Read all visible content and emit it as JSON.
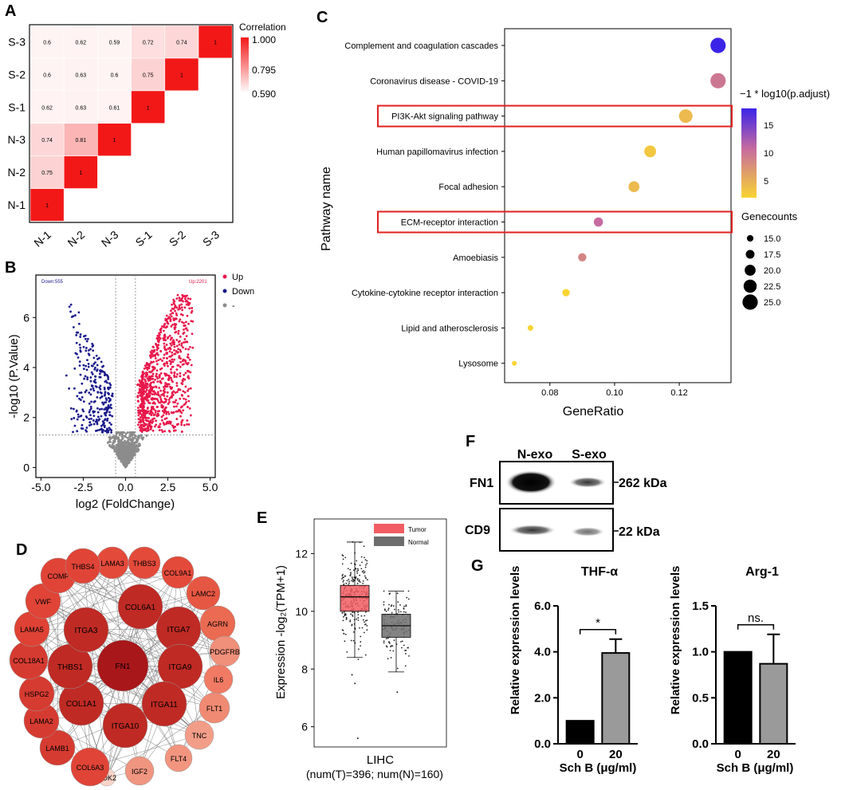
{
  "panel_labels": {
    "A": "A",
    "B": "B",
    "C": "C",
    "D": "D",
    "E": "E",
    "F": "F",
    "G": "G"
  },
  "colors": {
    "heat_hi": "#f21818",
    "heat_lo": "#ffffff",
    "up": "#e8174a",
    "down": "#1a1a8c",
    "ns": "#8c8c8c",
    "dot_hi": "#3b24e8",
    "dot_mid": "#c66aa0",
    "dot_lo": "#f9d432",
    "tumor": "#f15d62",
    "normal": "#6d6d6d",
    "box_border": "#e22020"
  },
  "chart_data": [
    {
      "panel": "A",
      "type": "heatmap",
      "rows": [
        "S-3",
        "S-2",
        "S-1",
        "N-3",
        "N-2",
        "N-1"
      ],
      "cols": [
        "N-1",
        "N-2",
        "N-3",
        "S-1",
        "S-2",
        "S-3"
      ],
      "cells": [
        {
          "r": "N-1",
          "c": "N-1",
          "v": 1,
          "label": "1"
        },
        {
          "r": "N-2",
          "c": "N-1",
          "v": 0.75,
          "label": "0.75"
        },
        {
          "r": "N-2",
          "c": "N-2",
          "v": 1,
          "label": "1"
        },
        {
          "r": "N-3",
          "c": "N-1",
          "v": 0.74,
          "label": "0.74"
        },
        {
          "r": "N-3",
          "c": "N-2",
          "v": 0.81,
          "label": "0.81"
        },
        {
          "r": "N-3",
          "c": "N-3",
          "v": 1,
          "label": "1"
        },
        {
          "r": "S-1",
          "c": "N-1",
          "v": 0.62,
          "label": "0.62"
        },
        {
          "r": "S-1",
          "c": "N-2",
          "v": 0.63,
          "label": "0.63"
        },
        {
          "r": "S-1",
          "c": "N-3",
          "v": 0.61,
          "label": "0.61"
        },
        {
          "r": "S-1",
          "c": "S-1",
          "v": 1,
          "label": "1"
        },
        {
          "r": "S-2",
          "c": "N-1",
          "v": 0.6,
          "label": "0.6"
        },
        {
          "r": "S-2",
          "c": "N-2",
          "v": 0.63,
          "label": "0.63"
        },
        {
          "r": "S-2",
          "c": "N-3",
          "v": 0.6,
          "label": "0.6"
        },
        {
          "r": "S-2",
          "c": "S-1",
          "v": 0.75,
          "label": "0.75"
        },
        {
          "r": "S-2",
          "c": "S-2",
          "v": 1,
          "label": "1"
        },
        {
          "r": "S-3",
          "c": "N-1",
          "v": 0.6,
          "label": "0.6"
        },
        {
          "r": "S-3",
          "c": "N-2",
          "v": 0.62,
          "label": "0.62"
        },
        {
          "r": "S-3",
          "c": "N-3",
          "v": 0.59,
          "label": "0.59"
        },
        {
          "r": "S-3",
          "c": "S-1",
          "v": 0.72,
          "label": "0.72"
        },
        {
          "r": "S-3",
          "c": "S-2",
          "v": 0.74,
          "label": "0.74"
        },
        {
          "r": "S-3",
          "c": "S-3",
          "v": 1,
          "label": "1"
        }
      ],
      "legend": {
        "title": "Correlation",
        "ticks": [
          "1.000",
          "0.795",
          "0.590"
        ],
        "range": [
          0.59,
          1.0
        ]
      }
    },
    {
      "panel": "B",
      "type": "scatter",
      "xlabel": "log2 (FoldChange)",
      "ylabel": "-log10 (P.Value)",
      "xlim": [
        -5.3,
        5.3
      ],
      "ylim": [
        -0.4,
        7.7
      ],
      "xticks": [
        "-5.0",
        "-2.5",
        "0.0",
        "2.5",
        "5.0"
      ],
      "xtick_values": [
        -5,
        -2.5,
        0,
        2.5,
        5
      ],
      "yticks": [
        "0",
        "2",
        "4",
        "6"
      ],
      "ytick_values": [
        0,
        2,
        4,
        6
      ],
      "fc_threshold": 0.585,
      "p_threshold": 1.3,
      "corner_down": "Down:555",
      "corner_up": "Up:2201",
      "legend": [
        {
          "name": "Up",
          "color": "#e8174a"
        },
        {
          "name": "Down",
          "color": "#1a1a8c"
        },
        {
          "name": "-",
          "color": "#8c8c8c"
        }
      ],
      "counts": {
        "Up": 2201,
        "Down": 555
      }
    },
    {
      "panel": "C",
      "type": "scatter",
      "xlabel": "GeneRatio",
      "ylabel": "Pathway name",
      "xlim": [
        0.066,
        0.136
      ],
      "xticks": [
        "0.08",
        "0.10",
        "0.12"
      ],
      "xtick_values": [
        0.08,
        0.1,
        0.12
      ],
      "pathways": [
        {
          "name": "Complement and coagulation cascades",
          "ratio": 0.132,
          "count": 25,
          "padj": 18
        },
        {
          "name": "Coronavirus disease - COVID-19",
          "ratio": 0.132,
          "count": 25,
          "padj": 9
        },
        {
          "name": "PI3K-Akt signaling pathway",
          "ratio": 0.122,
          "count": 23,
          "padj": 4
        },
        {
          "name": "Human papillomavirus infection",
          "ratio": 0.111,
          "count": 21,
          "padj": 3
        },
        {
          "name": "Focal adhesion",
          "ratio": 0.106,
          "count": 20,
          "padj": 4
        },
        {
          "name": "ECM-receptor interaction",
          "ratio": 0.095,
          "count": 18,
          "padj": 10
        },
        {
          "name": "Amoebiasis",
          "ratio": 0.09,
          "count": 17,
          "padj": 8
        },
        {
          "name": "Cytokine-cytokine receptor interaction",
          "ratio": 0.085,
          "count": 16,
          "padj": 2
        },
        {
          "name": "Lipid and atherosclerosis",
          "ratio": 0.074,
          "count": 14,
          "padj": 2
        },
        {
          "name": "Lysosome",
          "ratio": 0.069,
          "count": 13,
          "padj": 2
        }
      ],
      "highlighted": [
        "PI3K-Akt signaling pathway",
        "ECM-receptor interaction"
      ],
      "color_legend": {
        "title": "−1 * log10(p.adjust)",
        "ticks": [
          "15",
          "10",
          "5"
        ],
        "tick_values": [
          15,
          10,
          5
        ],
        "range": [
          2,
          18
        ]
      },
      "size_legend": {
        "title": "Genecounts",
        "items": [
          "15.0",
          "17.5",
          "20.0",
          "22.5",
          "25.0"
        ],
        "values": [
          15,
          17.5,
          20,
          22.5,
          25
        ]
      }
    },
    {
      "panel": "D",
      "type": "network",
      "hub": "FN1",
      "inner": [
        "COL6A1",
        "ITGA7",
        "ITGA9",
        "ITGA11",
        "ITGA10",
        "COL1A1",
        "THBS1",
        "ITGA3"
      ],
      "outer": [
        "LAMA3",
        "THBS3",
        "COL9A1",
        "LAMC2",
        "AGRN",
        "PDGFRB",
        "IL6",
        "FLT1",
        "TNC",
        "FLT4",
        "IGF2",
        "CDK2",
        "COL6A3",
        "LAMB1",
        "LAMA2",
        "HSPG2",
        "COL18A1",
        "LAMA5",
        "VWF",
        "COMP",
        "THBS4"
      ]
    },
    {
      "panel": "E",
      "type": "box",
      "categories": [
        "Tumor",
        "Normal"
      ],
      "ylabel": "Expression -log₂(TPM+1)",
      "ylim": [
        5.3,
        13.2
      ],
      "yticks": [
        "6",
        "8",
        "10",
        "12"
      ],
      "ytick_values": [
        6,
        8,
        10,
        12
      ],
      "xlabel": "LIHC",
      "subtitle": "(num(T)=396; num(N)=160)",
      "series": [
        {
          "name": "Tumor",
          "n": 396,
          "min": 8.4,
          "q1": 10.0,
          "median": 10.5,
          "q3": 10.9,
          "max": 12.4,
          "outliers": [
            5.6,
            7.5,
            7.8
          ]
        },
        {
          "name": "Normal",
          "n": 160,
          "min": 7.9,
          "q1": 9.1,
          "median": 9.5,
          "q3": 9.9,
          "max": 10.7,
          "outliers": [
            7.2
          ]
        }
      ],
      "legend": [
        "Tumor",
        "Normal"
      ]
    },
    {
      "panel": "G1",
      "type": "bar",
      "title": "THF-α",
      "categories": [
        "0",
        "20"
      ],
      "values": [
        1.0,
        3.95
      ],
      "errors": [
        0,
        0.6
      ],
      "ylim": [
        0,
        6
      ],
      "yticks": [
        "0.0",
        "2.0",
        "4.0",
        "6.0"
      ],
      "ytick_values": [
        0,
        2,
        4,
        6
      ],
      "ylabel": "Relative expression levels",
      "xlabel": "Sch B (μg/ml)",
      "significance": "*"
    },
    {
      "panel": "G2",
      "type": "bar",
      "title": "Arg-1",
      "categories": [
        "0",
        "20"
      ],
      "values": [
        1.0,
        0.87
      ],
      "errors": [
        0,
        0.32
      ],
      "ylim": [
        0,
        1.5
      ],
      "yticks": [
        "0.0",
        "0.5",
        "1.0",
        "1.5"
      ],
      "ytick_values": [
        0,
        0.5,
        1,
        1.5
      ],
      "ylabel": "Relative expression levels",
      "xlabel": "Sch B (μg/ml)",
      "significance": "ns."
    }
  ],
  "blot": {
    "lanes": [
      "N-exo",
      "S-exo"
    ],
    "rows": [
      {
        "label": "FN1",
        "size": "262 kDa"
      },
      {
        "label": "CD9",
        "size": "22 kDa"
      }
    ]
  }
}
